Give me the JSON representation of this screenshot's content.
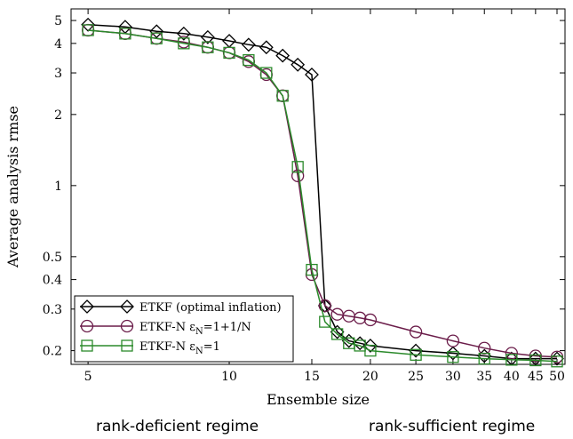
{
  "chart_data": {
    "type": "line",
    "title": "",
    "xlabel": "Ensemble size",
    "ylabel": "Average analysis rmse",
    "xscale": "log",
    "yscale": "log",
    "xlim": [
      4.6,
      52
    ],
    "ylim": [
      0.175,
      5.6
    ],
    "xticks": [
      5,
      10,
      15,
      20,
      25,
      30,
      35,
      40,
      45,
      50
    ],
    "yticks": [
      0.2,
      0.3,
      0.4,
      0.5,
      1,
      2,
      3,
      4,
      5
    ],
    "grid": false,
    "legend_position": "bottom-left",
    "series": [
      {
        "name": "ETKF (optimal inflation)",
        "color": "#000000",
        "marker": "diamond",
        "x": [
          5,
          6,
          7,
          8,
          9,
          10,
          11,
          12,
          13,
          14,
          15,
          16,
          17,
          18,
          19,
          20,
          25,
          30,
          35,
          40,
          45,
          50
        ],
        "y": [
          4.8,
          4.7,
          4.5,
          4.4,
          4.25,
          4.1,
          3.95,
          3.85,
          3.55,
          3.25,
          2.95,
          0.31,
          0.24,
          0.22,
          0.215,
          0.21,
          0.2,
          0.195,
          0.19,
          0.185,
          0.185,
          0.185
        ]
      },
      {
        "name": "ETKF-N ε_N=1+1/N",
        "name_parts": {
          "base": "ETKF-N ε",
          "sub": "N",
          "tail": "=1+1/N"
        },
        "color": "#6b1d4a",
        "marker": "circle",
        "x": [
          5,
          6,
          7,
          8,
          9,
          10,
          11,
          12,
          13,
          14,
          15,
          16,
          17,
          18,
          19,
          20,
          25,
          30,
          35,
          40,
          45,
          50
        ],
        "y": [
          4.55,
          4.4,
          4.2,
          4.05,
          3.85,
          3.65,
          3.35,
          2.95,
          2.4,
          1.1,
          0.42,
          0.31,
          0.285,
          0.28,
          0.275,
          0.27,
          0.24,
          0.22,
          0.205,
          0.195,
          0.19,
          0.188
        ]
      },
      {
        "name": "ETKF-N ε_N=1",
        "name_parts": {
          "base": "ETKF-N ε",
          "sub": "N",
          "tail": "=1"
        },
        "color": "#2b8a2b",
        "marker": "square",
        "x": [
          5,
          6,
          7,
          8,
          9,
          10,
          11,
          12,
          13,
          14,
          15,
          16,
          17,
          18,
          19,
          20,
          25,
          30,
          35,
          40,
          45,
          50
        ],
        "y": [
          4.55,
          4.4,
          4.2,
          4.0,
          3.85,
          3.65,
          3.4,
          3.0,
          2.4,
          1.2,
          0.44,
          0.265,
          0.235,
          0.215,
          0.21,
          0.2,
          0.192,
          0.188,
          0.185,
          0.183,
          0.182,
          0.18
        ]
      }
    ]
  },
  "annotations": {
    "left_regime": "rank-deficient regime",
    "right_regime": "rank-sufficient regime"
  }
}
